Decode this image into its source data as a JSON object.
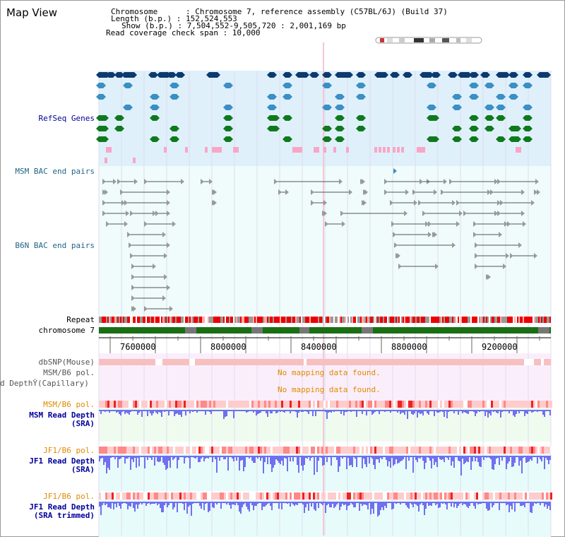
{
  "app": {
    "title": "Map View"
  },
  "header": {
    "lines": [
      "Chromosome      : Chromosome 7, reference assembly (C57BL/6J) (Build 37)",
      "Length (b.p.) : 152,524,553",
      "Show (b.p.) : 7,504,552-9,505,720 : 2,001,169 bp",
      "Read coverage check span : 10,000"
    ]
  },
  "tracks": {
    "refseq": {
      "label": "RefSeq Genes"
    },
    "msm_bac": {
      "label": "MSM BAC end pairs"
    },
    "b6n_bac": {
      "label": "B6N BAC end pairs"
    },
    "repeat": {
      "label": "Repeat"
    },
    "chromosome": {
      "label": "chromosome 7"
    },
    "dbsnp": {
      "label": "dbSNP(Mouse)"
    },
    "msm_b6_pol_1": {
      "label": "MSM/B6 pol."
    },
    "read_depth_cap": {
      "label": "d DepthŸ(Capillary)"
    },
    "no_data_1": "No mapping data found.",
    "no_data_2": "No mapping data found.",
    "msm_b6_pol_2": {
      "label": "MSM/B6 pol."
    },
    "msm_read_depth": {
      "label_1": "MSM Read Depth",
      "label_2": "(SRA)"
    },
    "jf1_b6_pol_1": {
      "label": "JF1/B6 pol."
    },
    "jf1_read_depth": {
      "label_1": "JF1 Read Depth",
      "label_2": "(SRA)"
    },
    "jf1_b6_pol_2": {
      "label": "JF1/B6 pol."
    },
    "jf1_read_depth_trim": {
      "label_1": "JF1 Read Depth",
      "label_2": "(SRA trimmed)"
    }
  },
  "axis": {
    "ticks": [
      "7600000",
      "8000000",
      "8400000",
      "8800000",
      "9200000"
    ]
  },
  "colors": {
    "refseq_bg": "#dff0fb",
    "bac_bg": "#f0fbfb",
    "dark_gene": "#0d3a6e",
    "mid_gene": "#3a8fc4",
    "green_gene": "#0f7a1c",
    "pink_mark": "#f9a6c6",
    "label_blue": "#000099",
    "label_teal": "#226688",
    "label_orange": "#e08a00",
    "depth_blue": "#7070f0",
    "chrom_green": "#1a6e14"
  }
}
